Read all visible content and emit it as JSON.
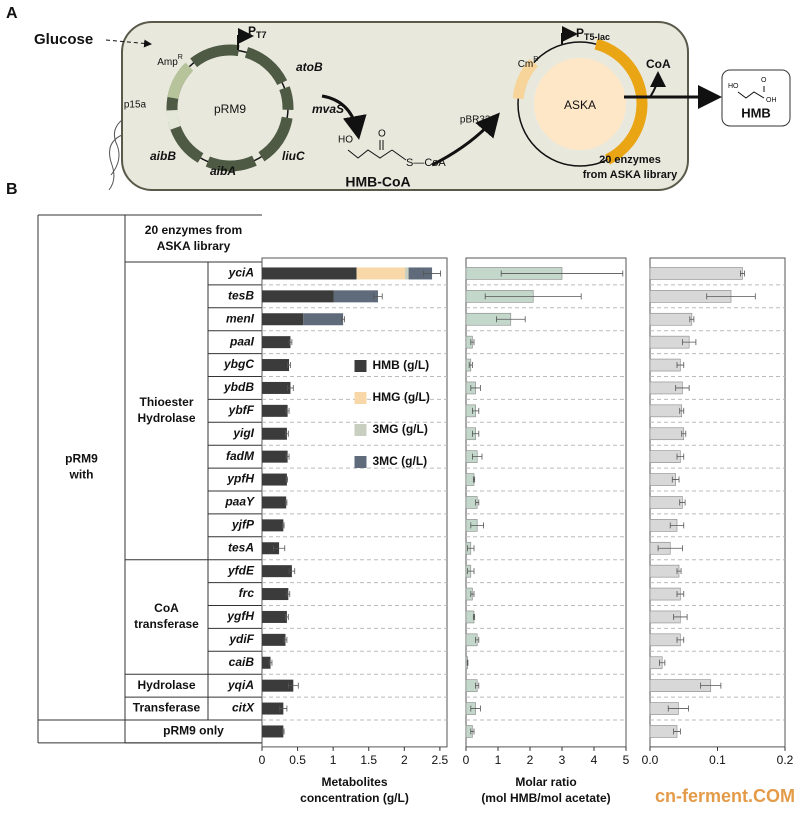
{
  "panel_a": {
    "label": "A",
    "glucose": "Glucose",
    "plasmid1": {
      "name": "pRM9",
      "ori": "p15a",
      "resistance": {
        "main": "Amp",
        "sup": "R"
      },
      "promoter": {
        "main": "P",
        "sub": "T7"
      },
      "genes": [
        "atoB",
        "mvaS",
        "liuC",
        "aibA",
        "aibB"
      ]
    },
    "intermediate": {
      "name": "HMB-CoA",
      "atoms": [
        "HO",
        "O",
        "S—CoA"
      ]
    },
    "plasmid2": {
      "name": "ASKA",
      "ori": "pBR322",
      "resistance": {
        "main": "Cm",
        "sup": "R"
      },
      "promoter": {
        "main": "P",
        "sub": "T5-lac"
      },
      "insert": [
        "20 enzymes",
        "from ASKA library"
      ]
    },
    "released": "CoA",
    "product": {
      "name": "HMB",
      "atoms": [
        "HO",
        "O",
        "OH"
      ]
    }
  },
  "panel_b": {
    "label": "B",
    "root": [
      "pRM9",
      "with"
    ],
    "header": [
      "20 enzymes from",
      "ASKA library"
    ],
    "groups": [
      {
        "name": [
          "Thioester",
          "Hydrolase"
        ],
        "genes": [
          "yciA",
          "tesB",
          "menI",
          "paaI",
          "ybgC",
          "ybdB",
          "ybfF",
          "yigI",
          "fadM",
          "ypfH",
          "paaY",
          "yjfP",
          "tesA"
        ]
      },
      {
        "name": [
          "CoA",
          "transferase"
        ],
        "genes": [
          "yfdE",
          "frc",
          "ygfH",
          "ydiF",
          "caiB"
        ]
      },
      {
        "name": [
          "Hydrolase"
        ],
        "genes": [
          "yqiA"
        ]
      },
      {
        "name": [
          "Transferase"
        ],
        "genes": [
          "citX"
        ]
      },
      {
        "name": [
          "pRM9 only"
        ],
        "genes": []
      }
    ]
  },
  "chart_data": [
    {
      "type": "bar",
      "orientation": "horizontal",
      "stacked": true,
      "xlabel": [
        "Metabolites",
        "concentration (g/L)"
      ],
      "xlim": [
        0,
        2.6
      ],
      "xticks": [
        0,
        0.5,
        1,
        1.5,
        2,
        2.5
      ],
      "legend": "right",
      "series": [
        {
          "name": "HMB (g/L)",
          "color": "#3b3b3b",
          "values": [
            1.33,
            1.01,
            0.58,
            0.4,
            0.38,
            0.4,
            0.36,
            0.35,
            0.36,
            0.35,
            0.34,
            0.3,
            0.24,
            0.42,
            0.37,
            0.35,
            0.33,
            0.12,
            0.44,
            0.3,
            0.3
          ]
        },
        {
          "name": "HMG (g/L)",
          "color": "#f8d8a8",
          "values": [
            0.68,
            0,
            0,
            0,
            0,
            0,
            0,
            0,
            0,
            0,
            0,
            0,
            0,
            0,
            0,
            0,
            0,
            0,
            0,
            0,
            0
          ]
        },
        {
          "name": "3MG (g/L)",
          "color": "#c9cfc0",
          "values": [
            0.05,
            0,
            0,
            0,
            0,
            0,
            0,
            0,
            0,
            0,
            0,
            0,
            0,
            0,
            0,
            0,
            0,
            0,
            0,
            0,
            0
          ]
        },
        {
          "name": "3MC (g/L)",
          "color": "#5f6b7a",
          "values": [
            0.33,
            0.62,
            0.56,
            0,
            0,
            0,
            0,
            0,
            0,
            0,
            0,
            0,
            0,
            0,
            0,
            0,
            0,
            0,
            0,
            0,
            0
          ]
        }
      ],
      "errors": [
        0.12,
        0.06,
        0.02,
        0.02,
        0.02,
        0.04,
        0.02,
        0.02,
        0.02,
        0.01,
        0.01,
        0.01,
        0.08,
        0.04,
        0.02,
        0.02,
        0.02,
        0.02,
        0.07,
        0.05,
        0.01
      ]
    },
    {
      "type": "bar",
      "orientation": "horizontal",
      "color": "#c3d7cb",
      "xlabel": [
        "Molar ratio",
        "(mol HMB/mol acetate)"
      ],
      "xlim": [
        0,
        5
      ],
      "xticks": [
        0,
        1,
        2,
        3,
        4,
        5
      ],
      "values": [
        3.0,
        2.1,
        1.4,
        0.2,
        0.15,
        0.3,
        0.3,
        0.3,
        0.35,
        0.25,
        0.35,
        0.35,
        0.15,
        0.15,
        0.2,
        0.25,
        0.35,
        0.05,
        0.35,
        0.3,
        0.2
      ],
      "errors": [
        1.9,
        1.5,
        0.45,
        0.05,
        0.05,
        0.15,
        0.1,
        0.1,
        0.15,
        0.02,
        0.05,
        0.2,
        0.1,
        0.1,
        0.05,
        0.02,
        0.05,
        0.01,
        0.05,
        0.15,
        0.05
      ]
    },
    {
      "type": "bar",
      "orientation": "horizontal",
      "color": "#d8d8d8",
      "xlim": [
        0,
        0.2
      ],
      "xticks": [
        {
          "value": 0,
          "label": "0.0"
        },
        0.1,
        0.2
      ],
      "values": [
        0.137,
        0.12,
        0.062,
        0.058,
        0.045,
        0.048,
        0.047,
        0.05,
        0.045,
        0.038,
        0.048,
        0.04,
        0.03,
        0.043,
        0.045,
        0.045,
        0.045,
        0.018,
        0.09,
        0.042,
        0.04
      ],
      "errors": [
        0.003,
        0.036,
        0.003,
        0.01,
        0.005,
        0.01,
        0.003,
        0.003,
        0.005,
        0.005,
        0.004,
        0.01,
        0.018,
        0.003,
        0.005,
        0.01,
        0.005,
        0.004,
        0.015,
        0.015,
        0.005
      ]
    }
  ],
  "watermark": "cn-ferment.COM"
}
